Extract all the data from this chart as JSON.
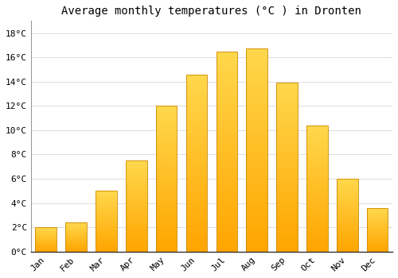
{
  "months": [
    "Jan",
    "Feb",
    "Mar",
    "Apr",
    "May",
    "Jun",
    "Jul",
    "Aug",
    "Sep",
    "Oct",
    "Nov",
    "Dec"
  ],
  "temperatures": [
    2.0,
    2.4,
    5.0,
    7.5,
    12.0,
    14.6,
    16.5,
    16.7,
    13.9,
    10.4,
    6.0,
    3.6
  ],
  "title": "Average monthly temperatures (°C ) in Dronten",
  "ylabel_ticks": [
    0,
    2,
    4,
    6,
    8,
    10,
    12,
    14,
    16,
    18
  ],
  "ylim": [
    0,
    19.0
  ],
  "bar_color_bottom": "#FFA500",
  "bar_color_top": "#FFD84D",
  "bar_edge_color": "#CC8800",
  "background_color": "#FFFFFF",
  "grid_color": "#DDDDDD",
  "title_fontsize": 10,
  "tick_fontsize": 8,
  "font_family": "monospace"
}
